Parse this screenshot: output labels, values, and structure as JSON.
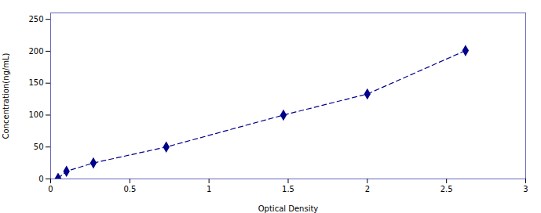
{
  "chart_data": {
    "type": "line",
    "xlabel": "Optical Density",
    "ylabel": "Concentration(ng/mL)",
    "x": [
      0.047,
      0.1,
      0.27,
      0.73,
      1.47,
      2.0,
      2.62
    ],
    "values": [
      1,
      12,
      25,
      50,
      100,
      133,
      201
    ],
    "color": "#00008B",
    "marker": "diamond",
    "line_style": "dashed",
    "xlim": [
      0,
      3
    ],
    "ylim": [
      0,
      260
    ],
    "xticks": [
      0,
      0.5,
      1,
      1.5,
      2,
      2.5,
      3
    ],
    "yticks": [
      0,
      50,
      100,
      150,
      200,
      250
    ],
    "grid": false
  }
}
